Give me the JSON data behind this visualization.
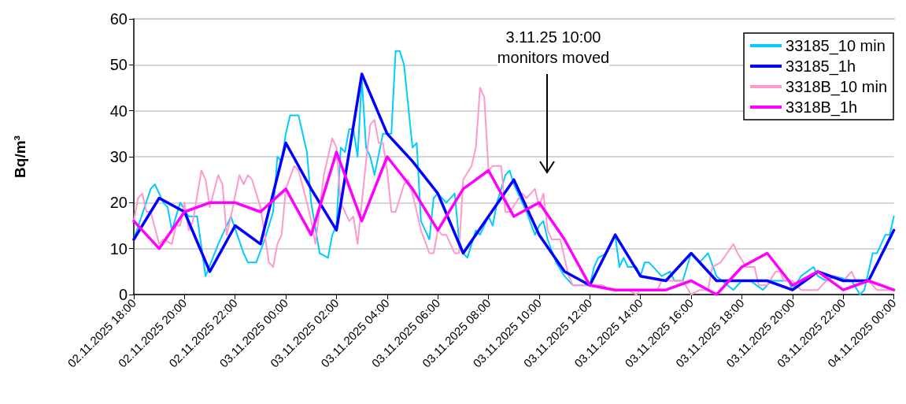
{
  "chart_data": {
    "type": "line",
    "ylabel": "Bq/m³",
    "x": [
      "2025-11-02T18:00",
      "2025-11-02T19:00",
      "2025-11-02T20:00",
      "2025-11-02T21:00",
      "2025-11-02T22:00",
      "2025-11-02T23:00",
      "2025-11-03T00:00",
      "2025-11-03T01:00",
      "2025-11-03T02:00",
      "2025-11-03T03:00",
      "2025-11-03T04:00",
      "2025-11-03T05:00",
      "2025-11-03T06:00",
      "2025-11-03T07:00",
      "2025-11-03T08:00",
      "2025-11-03T09:00",
      "2025-11-03T10:00",
      "2025-11-03T11:00",
      "2025-11-03T12:00",
      "2025-11-03T13:00",
      "2025-11-03T14:00",
      "2025-11-03T15:00",
      "2025-11-03T16:00",
      "2025-11-03T17:00",
      "2025-11-03T18:00",
      "2025-11-03T19:00",
      "2025-11-03T20:00",
      "2025-11-03T21:00",
      "2025-11-03T22:00",
      "2025-11-03T23:00",
      "2025-11-04T00:00"
    ],
    "series": [
      {
        "name": "33185_10 min",
        "color": "#00ccff",
        "x": [
          "2025-11-02T18:00",
          "2025-11-02T18:40",
          "2025-11-02T18:50",
          "2025-11-02T19:10",
          "2025-11-02T19:20",
          "2025-11-02T19:30",
          "2025-11-02T19:50",
          "2025-11-02T20:10",
          "2025-11-02T20:30",
          "2025-11-02T20:50",
          "2025-11-02T21:20",
          "2025-11-02T21:30",
          "2025-11-02T21:50",
          "2025-11-02T22:20",
          "2025-11-02T22:30",
          "2025-11-02T22:50",
          "2025-11-02T23:10",
          "2025-11-02T23:30",
          "2025-11-02T23:40",
          "2025-11-02T23:50",
          "2025-11-03T00:00",
          "2025-11-03T00:10",
          "2025-11-03T00:30",
          "2025-11-03T00:50",
          "2025-11-03T01:00",
          "2025-11-03T01:20",
          "2025-11-03T01:40",
          "2025-11-03T01:50",
          "2025-11-03T02:00",
          "2025-11-03T02:10",
          "2025-11-03T02:20",
          "2025-11-03T02:30",
          "2025-11-03T02:40",
          "2025-11-03T02:50",
          "2025-11-03T03:00",
          "2025-11-03T03:10",
          "2025-11-03T03:20",
          "2025-11-03T03:30",
          "2025-11-03T03:50",
          "2025-11-03T04:10",
          "2025-11-03T04:20",
          "2025-11-03T04:30",
          "2025-11-03T04:40",
          "2025-11-03T05:00",
          "2025-11-03T05:10",
          "2025-11-03T05:20",
          "2025-11-03T05:30",
          "2025-11-03T05:40",
          "2025-11-03T05:50",
          "2025-11-03T06:00",
          "2025-11-03T06:20",
          "2025-11-03T06:40",
          "2025-11-03T06:50",
          "2025-11-03T07:00",
          "2025-11-03T07:10",
          "2025-11-03T07:30",
          "2025-11-03T07:40",
          "2025-11-03T08:00",
          "2025-11-03T08:10",
          "2025-11-03T08:20",
          "2025-11-03T08:40",
          "2025-11-03T08:50",
          "2025-11-03T09:00",
          "2025-11-03T09:10",
          "2025-11-03T09:30",
          "2025-11-03T09:50",
          "2025-11-03T10:00",
          "2025-11-03T10:10",
          "2025-11-03T10:20",
          "2025-11-03T10:40",
          "2025-11-03T11:00",
          "2025-11-03T11:20",
          "2025-11-03T12:00",
          "2025-11-03T12:10",
          "2025-11-03T12:20",
          "2025-11-03T12:40",
          "2025-11-03T13:00",
          "2025-11-03T13:10",
          "2025-11-03T13:20",
          "2025-11-03T13:30",
          "2025-11-03T13:50",
          "2025-11-03T14:00",
          "2025-11-03T14:10",
          "2025-11-03T14:20",
          "2025-11-03T14:50",
          "2025-11-03T15:10",
          "2025-11-03T15:20",
          "2025-11-03T15:40",
          "2025-11-03T16:00",
          "2025-11-03T16:20",
          "2025-11-03T16:40",
          "2025-11-03T17:00",
          "2025-11-03T17:40",
          "2025-11-03T18:00",
          "2025-11-03T18:20",
          "2025-11-03T18:50",
          "2025-11-03T19:10",
          "2025-11-03T19:50",
          "2025-11-03T20:00",
          "2025-11-03T20:20",
          "2025-11-03T20:50",
          "2025-11-03T21:00",
          "2025-11-03T21:20",
          "2025-11-03T21:40",
          "2025-11-03T22:20",
          "2025-11-03T22:40",
          "2025-11-03T22:50",
          "2025-11-03T23:10",
          "2025-11-03T23:20",
          "2025-11-03T23:40",
          "2025-11-03T23:50",
          "2025-11-04T00:00"
        ],
        "values": [
          12,
          23,
          24,
          20,
          19,
          14,
          20,
          17,
          17,
          4,
          11,
          13,
          17,
          9,
          7,
          7,
          12,
          18,
          30,
          29,
          35,
          39,
          39,
          31,
          20,
          9,
          8,
          13,
          15,
          32,
          31,
          36,
          36,
          30,
          47,
          32,
          30,
          26,
          35,
          35,
          53,
          53,
          50,
          32,
          33,
          16,
          14,
          12,
          21,
          22,
          20,
          22,
          12,
          9,
          8,
          14,
          13,
          17,
          15,
          20,
          26,
          27,
          24,
          22,
          18,
          13,
          15,
          16,
          12,
          7,
          4,
          2,
          2,
          6,
          8,
          9,
          13,
          6,
          8,
          6,
          6,
          4,
          7,
          7,
          4,
          5,
          3,
          3,
          9,
          7,
          9,
          4,
          1,
          3,
          3,
          1,
          3,
          3,
          1,
          4,
          6,
          4,
          3,
          4,
          3,
          0,
          1,
          9,
          9,
          13,
          13,
          17
        ]
      },
      {
        "name": "33185_1h",
        "color": "#0000ff",
        "values": [
          12,
          21,
          18,
          5,
          15,
          11,
          33,
          23,
          14,
          48,
          35,
          29,
          22,
          9,
          17,
          25,
          13,
          5,
          2,
          13,
          4,
          3,
          9,
          3,
          3,
          3,
          1,
          5,
          3,
          3,
          14
        ]
      },
      {
        "name": "3318B_10 min",
        "color": "#ff99cc",
        "x": [
          "2025-11-02T18:00",
          "2025-11-02T18:10",
          "2025-11-02T18:20",
          "2025-11-02T18:30",
          "2025-11-02T18:40",
          "2025-11-02T19:00",
          "2025-11-02T19:10",
          "2025-11-02T19:30",
          "2025-11-02T19:40",
          "2025-11-02T19:50",
          "2025-11-02T20:00",
          "2025-11-02T20:10",
          "2025-11-02T20:20",
          "2025-11-02T20:40",
          "2025-11-02T20:50",
          "2025-11-02T21:00",
          "2025-11-02T21:20",
          "2025-11-02T21:30",
          "2025-11-02T21:40",
          "2025-11-02T21:50",
          "2025-11-02T22:10",
          "2025-11-02T22:20",
          "2025-11-02T22:30",
          "2025-11-02T22:40",
          "2025-11-02T23:00",
          "2025-11-02T23:10",
          "2025-11-02T23:20",
          "2025-11-02T23:30",
          "2025-11-02T23:40",
          "2025-11-02T23:50",
          "2025-11-03T00:00",
          "2025-11-03T00:20",
          "2025-11-03T00:30",
          "2025-11-03T00:50",
          "2025-11-03T01:00",
          "2025-11-03T01:10",
          "2025-11-03T01:30",
          "2025-11-03T01:50",
          "2025-11-03T02:00",
          "2025-11-03T02:10",
          "2025-11-03T02:30",
          "2025-11-03T02:40",
          "2025-11-03T02:50",
          "2025-11-03T03:10",
          "2025-11-03T03:20",
          "2025-11-03T03:30",
          "2025-11-03T03:40",
          "2025-11-03T03:50",
          "2025-11-03T04:00",
          "2025-11-03T04:10",
          "2025-11-03T04:20",
          "2025-11-03T04:40",
          "2025-11-03T04:50",
          "2025-11-03T05:00",
          "2025-11-03T05:20",
          "2025-11-03T05:40",
          "2025-11-03T05:50",
          "2025-11-03T06:00",
          "2025-11-03T06:10",
          "2025-11-03T06:20",
          "2025-11-03T06:40",
          "2025-11-03T06:50",
          "2025-11-03T07:00",
          "2025-11-03T07:20",
          "2025-11-03T07:30",
          "2025-11-03T07:40",
          "2025-11-03T07:50",
          "2025-11-03T08:00",
          "2025-11-03T08:10",
          "2025-11-03T08:30",
          "2025-11-03T08:40",
          "2025-11-03T08:50",
          "2025-11-03T09:20",
          "2025-11-03T09:30",
          "2025-11-03T09:50",
          "2025-11-03T10:00",
          "2025-11-03T10:10",
          "2025-11-03T10:20",
          "2025-11-03T10:30",
          "2025-11-03T10:50",
          "2025-11-03T11:10",
          "2025-11-03T11:20",
          "2025-11-03T12:00",
          "2025-11-03T12:30",
          "2025-11-03T12:50",
          "2025-11-03T13:30",
          "2025-11-03T13:50",
          "2025-11-03T14:00",
          "2025-11-03T14:40",
          "2025-11-03T14:50",
          "2025-11-03T15:40",
          "2025-11-03T16:00",
          "2025-11-03T16:20",
          "2025-11-03T16:40",
          "2025-11-03T16:50",
          "2025-11-03T17:10",
          "2025-11-03T17:40",
          "2025-11-03T17:50",
          "2025-11-03T18:10",
          "2025-11-03T18:30",
          "2025-11-03T18:40",
          "2025-11-03T19:00",
          "2025-11-03T19:20",
          "2025-11-03T19:30",
          "2025-11-03T19:40",
          "2025-11-03T20:00",
          "2025-11-03T20:20",
          "2025-11-03T21:00",
          "2025-11-03T21:30",
          "2025-11-03T21:40",
          "2025-11-03T22:00",
          "2025-11-03T22:20",
          "2025-11-03T22:30",
          "2025-11-03T23:00",
          "2025-11-03T23:20",
          "2025-11-04T00:00"
        ],
        "values": [
          16,
          21,
          22,
          18,
          18,
          11,
          12,
          11,
          15,
          15,
          20,
          14,
          16,
          27,
          25,
          19,
          26,
          24,
          13,
          17,
          26,
          24,
          26,
          25,
          19,
          13,
          7,
          6,
          11,
          13,
          23,
          28,
          27,
          20,
          16,
          11,
          26,
          34,
          32,
          20,
          16,
          17,
          11,
          29,
          37,
          38,
          33,
          33,
          27,
          18,
          18,
          24,
          25,
          22,
          14,
          9,
          9,
          14,
          13,
          13,
          9,
          9,
          25,
          28,
          32,
          45,
          43,
          27,
          28,
          28,
          18,
          18,
          22,
          21,
          23,
          19,
          22,
          14,
          12,
          12,
          4,
          2,
          2,
          2,
          1,
          1,
          0,
          1,
          1,
          3,
          3,
          0,
          1,
          1,
          6,
          7,
          11,
          9,
          6,
          6,
          2,
          2,
          5,
          5,
          3,
          3,
          1,
          1,
          4,
          4,
          3,
          5,
          3,
          3,
          1,
          1
        ]
      },
      {
        "name": "3318B_1h",
        "color": "#ff00ff",
        "values": [
          16,
          10,
          18,
          20,
          20,
          18,
          23,
          13,
          31,
          16,
          30,
          23,
          14,
          23,
          27,
          17,
          20,
          12,
          2,
          1,
          1,
          1,
          3,
          0,
          6,
          9,
          2,
          5,
          1,
          3,
          1
        ]
      }
    ],
    "ylim": [
      0,
      60
    ],
    "yticks": [
      0,
      10,
      20,
      30,
      40,
      50,
      60
    ],
    "xlim": [
      "2025-11-02T18:00",
      "2025-11-04T00:00"
    ],
    "xticks": [
      {
        "value": "2025-11-02T18:00",
        "label": "02.11.2025 18:00"
      },
      {
        "value": "2025-11-02T20:00",
        "label": "02.11.2025 20:00"
      },
      {
        "value": "2025-11-02T22:00",
        "label": "02.11.2025 22:00"
      },
      {
        "value": "2025-11-03T00:00",
        "label": "03.11.2025 00:00"
      },
      {
        "value": "2025-11-03T02:00",
        "label": "03.11.2025 02:00"
      },
      {
        "value": "2025-11-03T04:00",
        "label": "03.11.2025 04:00"
      },
      {
        "value": "2025-11-03T06:00",
        "label": "03.11.2025 06:00"
      },
      {
        "value": "2025-11-03T08:00",
        "label": "03.11.2025 08:00"
      },
      {
        "value": "2025-11-03T10:00",
        "label": "03.11.2025 10:00"
      },
      {
        "value": "2025-11-03T12:00",
        "label": "03.11.2025 12:00"
      },
      {
        "value": "2025-11-03T14:00",
        "label": "03.11.2025 14:00"
      },
      {
        "value": "2025-11-03T16:00",
        "label": "03.11.2025 16:00"
      },
      {
        "value": "2025-11-03T18:00",
        "label": "03.11.2025 18:00"
      },
      {
        "value": "2025-11-03T20:00",
        "label": "03.11.2025 20:00"
      },
      {
        "value": "2025-11-03T22:00",
        "label": "03.11.2025 22:00"
      },
      {
        "value": "2025-11-04T00:00",
        "label": "04.11.2025 00:00"
      }
    ],
    "annotations": [
      "3.11.25 10:00\nmonitors moved"
    ],
    "grid": "y",
    "legend": "top right",
    "marker": "none",
    "line_style": "solid"
  }
}
